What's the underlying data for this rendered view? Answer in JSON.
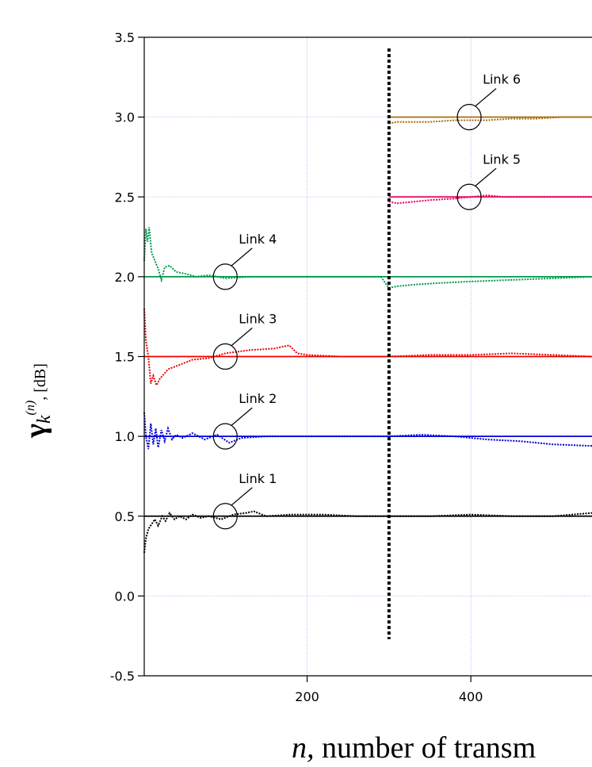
{
  "chart_data": {
    "type": "line",
    "xlabel_var": "n,",
    "xlabel_rest": " number of transm",
    "ylabel_symbol": "γ",
    "ylabel_sub": "k",
    "ylabel_sup": "(n)",
    "ylabel_unit": ", [dB]",
    "xlim": [
      1,
      548
    ],
    "ylim": [
      -0.5,
      3.5
    ],
    "x_ticks": [
      {
        "value": 200,
        "label": "200"
      },
      {
        "value": 400,
        "label": "400"
      }
    ],
    "y_ticks": [
      {
        "value": -0.5,
        "label": "-0.5"
      },
      {
        "value": 0.0,
        "label": "0.0"
      },
      {
        "value": 0.5,
        "label": "0.5"
      },
      {
        "value": 1.0,
        "label": "1.0"
      },
      {
        "value": 1.5,
        "label": "1.5"
      },
      {
        "value": 2.0,
        "label": "2.0"
      },
      {
        "value": 2.5,
        "label": "2.5"
      },
      {
        "value": 3.0,
        "label": "3.0"
      },
      {
        "value": 3.5,
        "label": "3.5"
      }
    ],
    "grid": true,
    "vline": {
      "x": 300,
      "y_range": [
        -0.27,
        3.43
      ]
    },
    "series": [
      {
        "name": "Link 1",
        "color": "#000000",
        "target": 0.5,
        "start": 1,
        "annotation_x": 100,
        "estimate": [
          [
            1,
            0.27
          ],
          [
            3,
            0.36
          ],
          [
            6,
            0.42
          ],
          [
            10,
            0.45
          ],
          [
            14,
            0.48
          ],
          [
            18,
            0.44
          ],
          [
            23,
            0.5
          ],
          [
            27,
            0.47
          ],
          [
            32,
            0.52
          ],
          [
            38,
            0.48
          ],
          [
            44,
            0.5
          ],
          [
            52,
            0.48
          ],
          [
            60,
            0.51
          ],
          [
            70,
            0.49
          ],
          [
            80,
            0.5
          ],
          [
            95,
            0.48
          ],
          [
            110,
            0.51
          ],
          [
            125,
            0.52
          ],
          [
            135,
            0.53
          ],
          [
            150,
            0.5
          ],
          [
            180,
            0.51
          ],
          [
            220,
            0.51
          ],
          [
            260,
            0.5
          ],
          [
            300,
            0.5
          ],
          [
            350,
            0.5
          ],
          [
            400,
            0.51
          ],
          [
            450,
            0.5
          ],
          [
            500,
            0.5
          ],
          [
            548,
            0.52
          ]
        ]
      },
      {
        "name": "Link 2",
        "color": "#0000dd",
        "target": 1.0,
        "start": 1,
        "annotation_x": 100,
        "estimate": [
          [
            1,
            1.15
          ],
          [
            3,
            1.0
          ],
          [
            6,
            0.92
          ],
          [
            9,
            1.08
          ],
          [
            12,
            0.95
          ],
          [
            15,
            1.05
          ],
          [
            18,
            0.93
          ],
          [
            22,
            1.04
          ],
          [
            26,
            0.97
          ],
          [
            30,
            1.05
          ],
          [
            35,
            0.98
          ],
          [
            40,
            1.01
          ],
          [
            48,
            0.99
          ],
          [
            60,
            1.02
          ],
          [
            75,
            0.98
          ],
          [
            90,
            1.01
          ],
          [
            105,
            0.96
          ],
          [
            120,
            0.99
          ],
          [
            150,
            1.0
          ],
          [
            200,
            1.0
          ],
          [
            250,
            1.0
          ],
          [
            300,
            1.0
          ],
          [
            340,
            1.01
          ],
          [
            380,
            1.0
          ],
          [
            420,
            0.98
          ],
          [
            460,
            0.97
          ],
          [
            500,
            0.95
          ],
          [
            548,
            0.94
          ]
        ]
      },
      {
        "name": "Link 3",
        "color": "#ee0000",
        "target": 1.5,
        "start": 1,
        "annotation_x": 100,
        "estimate": [
          [
            1,
            1.8
          ],
          [
            3,
            1.6
          ],
          [
            6,
            1.5
          ],
          [
            9,
            1.33
          ],
          [
            12,
            1.38
          ],
          [
            16,
            1.32
          ],
          [
            20,
            1.36
          ],
          [
            30,
            1.42
          ],
          [
            45,
            1.45
          ],
          [
            60,
            1.48
          ],
          [
            80,
            1.49
          ],
          [
            100,
            1.52
          ],
          [
            130,
            1.54
          ],
          [
            160,
            1.55
          ],
          [
            178,
            1.57
          ],
          [
            188,
            1.52
          ],
          [
            200,
            1.51
          ],
          [
            240,
            1.5
          ],
          [
            280,
            1.5
          ],
          [
            300,
            1.5
          ],
          [
            350,
            1.51
          ],
          [
            400,
            1.51
          ],
          [
            450,
            1.52
          ],
          [
            500,
            1.51
          ],
          [
            548,
            1.5
          ]
        ]
      },
      {
        "name": "Link 4",
        "color": "#00994d",
        "target": 2.0,
        "start": 1,
        "annotation_x": 100,
        "estimate": [
          [
            1,
            2.1
          ],
          [
            3,
            2.3
          ],
          [
            5,
            2.22
          ],
          [
            7,
            2.31
          ],
          [
            10,
            2.15
          ],
          [
            14,
            2.1
          ],
          [
            18,
            2.05
          ],
          [
            22,
            1.98
          ],
          [
            26,
            2.06
          ],
          [
            32,
            2.07
          ],
          [
            40,
            2.03
          ],
          [
            50,
            2.02
          ],
          [
            65,
            2.0
          ],
          [
            80,
            2.01
          ],
          [
            100,
            1.99
          ],
          [
            130,
            2.0
          ],
          [
            170,
            2.0
          ],
          [
            220,
            2.0
          ],
          [
            260,
            2.0
          ],
          [
            290,
            2.0
          ],
          [
            300,
            1.93
          ],
          [
            310,
            1.94
          ],
          [
            330,
            1.95
          ],
          [
            360,
            1.96
          ],
          [
            400,
            1.97
          ],
          [
            450,
            1.98
          ],
          [
            500,
            1.99
          ],
          [
            548,
            2.0
          ]
        ]
      },
      {
        "name": "Link 5",
        "color": "#e6005c",
        "target": 2.5,
        "start": 300,
        "annotation_x": 398,
        "estimate": [
          [
            300,
            2.47
          ],
          [
            310,
            2.46
          ],
          [
            330,
            2.47
          ],
          [
            350,
            2.48
          ],
          [
            380,
            2.49
          ],
          [
            400,
            2.5
          ],
          [
            420,
            2.51
          ],
          [
            440,
            2.5
          ],
          [
            470,
            2.5
          ],
          [
            500,
            2.5
          ],
          [
            548,
            2.5
          ]
        ]
      },
      {
        "name": "Link 6",
        "color": "#a86d0c",
        "target": 3.0,
        "start": 300,
        "annotation_x": 398,
        "estimate": [
          [
            300,
            2.96
          ],
          [
            310,
            2.97
          ],
          [
            330,
            2.97
          ],
          [
            350,
            2.97
          ],
          [
            380,
            2.98
          ],
          [
            400,
            2.98
          ],
          [
            420,
            2.98
          ],
          [
            450,
            2.99
          ],
          [
            480,
            2.99
          ],
          [
            510,
            3.0
          ],
          [
            548,
            3.0
          ]
        ]
      }
    ]
  }
}
